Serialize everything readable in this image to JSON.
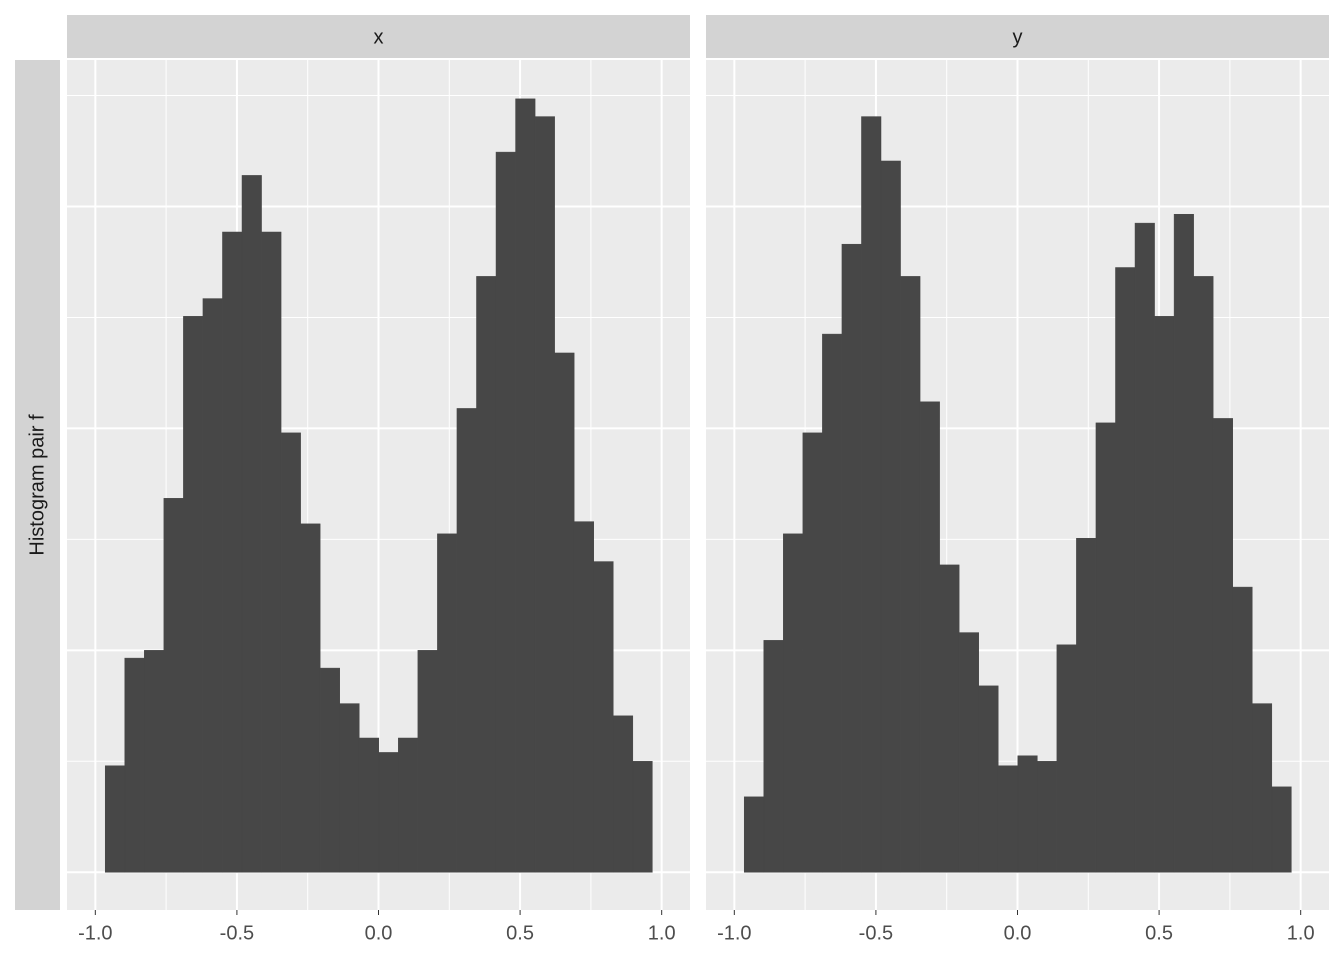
{
  "chart_data": {
    "type": "histogram",
    "row_label": "Histogram pair f",
    "color": "#474747",
    "xlim": [
      -1.1,
      1.1
    ],
    "xticks": [
      {
        "value": -1,
        "label": "-1.0"
      },
      -0.5,
      {
        "value": 0,
        "label": "0.0"
      },
      0.5,
      {
        "value": 1,
        "label": "1.0"
      }
    ],
    "x_minor_grid": [
      -0.75,
      -0.25,
      0.25,
      0.75
    ],
    "ylim": [
      -3.4,
      73.2
    ],
    "y_grid": [
      0,
      20,
      40,
      60
    ],
    "y_minor_grid": [
      10,
      30,
      50,
      70
    ],
    "panels": [
      {
        "title": "x",
        "bins": [
          -0.965,
          -0.896,
          -0.827,
          -0.758,
          -0.689,
          -0.62,
          -0.551,
          -0.482,
          -0.413,
          -0.344,
          -0.275,
          -0.206,
          -0.137,
          -0.068,
          0.001,
          0.07,
          0.139,
          0.208,
          0.277,
          0.346,
          0.415,
          0.484,
          0.553,
          0.622,
          0.691,
          0.76,
          0.829,
          0.898,
          0.967
        ],
        "values": [
          9.6,
          19.3,
          20.0,
          33.7,
          50.1,
          51.7,
          57.7,
          62.8,
          57.7,
          39.6,
          31.4,
          18.4,
          15.2,
          12.1,
          10.8,
          12.1,
          20.0,
          30.5,
          41.8,
          53.7,
          64.9,
          69.7,
          68.1,
          46.8,
          31.6,
          28.0,
          14.1,
          10.0
        ]
      },
      {
        "title": "y",
        "bins": [
          -0.965,
          -0.896,
          -0.827,
          -0.758,
          -0.689,
          -0.62,
          -0.551,
          -0.482,
          -0.413,
          -0.344,
          -0.275,
          -0.206,
          -0.137,
          -0.068,
          0.001,
          0.07,
          0.139,
          0.208,
          0.277,
          0.346,
          0.415,
          0.484,
          0.553,
          0.622,
          0.691,
          0.76,
          0.829,
          0.898,
          0.967
        ],
        "values": [
          6.8,
          20.9,
          30.5,
          39.6,
          48.5,
          56.6,
          68.1,
          64.1,
          53.7,
          42.4,
          27.7,
          21.6,
          16.8,
          9.6,
          10.5,
          10.0,
          20.5,
          30.1,
          40.5,
          54.5,
          58.5,
          50.1,
          59.3,
          53.7,
          40.9,
          25.7,
          15.2,
          7.7
        ]
      }
    ]
  }
}
